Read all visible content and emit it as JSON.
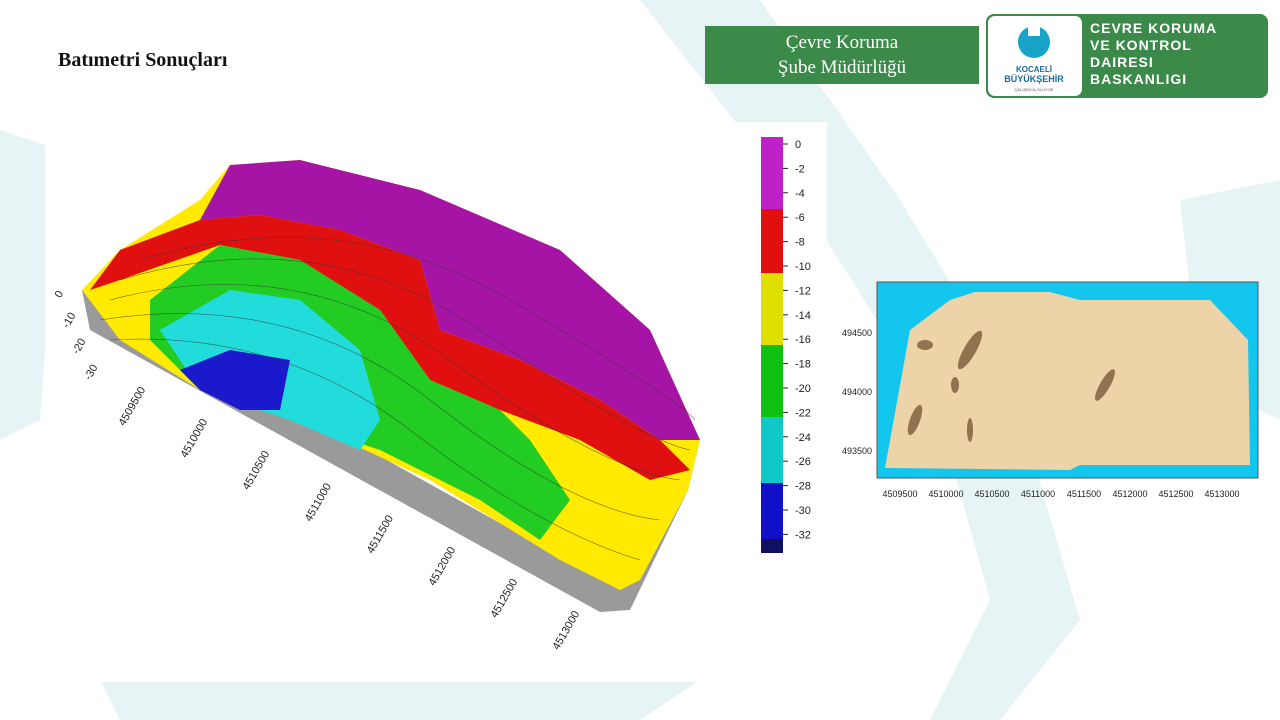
{
  "header": {
    "title": "Batımetri Sonuçları",
    "unit_box": [
      "Çevre Koruma",
      "Şube Müdürlüğü"
    ],
    "logo": {
      "name_1": "KOCAELİ",
      "name_2": "BÜYÜKŞEHİR",
      "slogan": "ÇALIŞINCA OLUYOR",
      "department": [
        "CEVRE KORUMA",
        "VE KONTROL",
        "DAIRESI",
        "BASKANLIGI"
      ]
    }
  },
  "surface_3d": {
    "depth_ticks": [
      0,
      -10,
      -20,
      -30
    ],
    "easting_ticks": [
      4509500,
      4510000,
      4510500,
      4511000,
      4511500,
      4512000,
      4512500,
      4513000
    ]
  },
  "colorbar": {
    "ticks": [
      0,
      -2,
      -4,
      -6,
      -8,
      -10,
      -12,
      -14,
      -16,
      -18,
      -20,
      -22,
      -24,
      -26,
      -28,
      -30,
      -32
    ]
  },
  "map_2d": {
    "northing_ticks": [
      494500,
      494000,
      493500
    ],
    "easting_ticks": [
      4509500,
      4510000,
      4510500,
      4511000,
      4511500,
      4512000,
      4512500,
      4513000
    ]
  }
}
